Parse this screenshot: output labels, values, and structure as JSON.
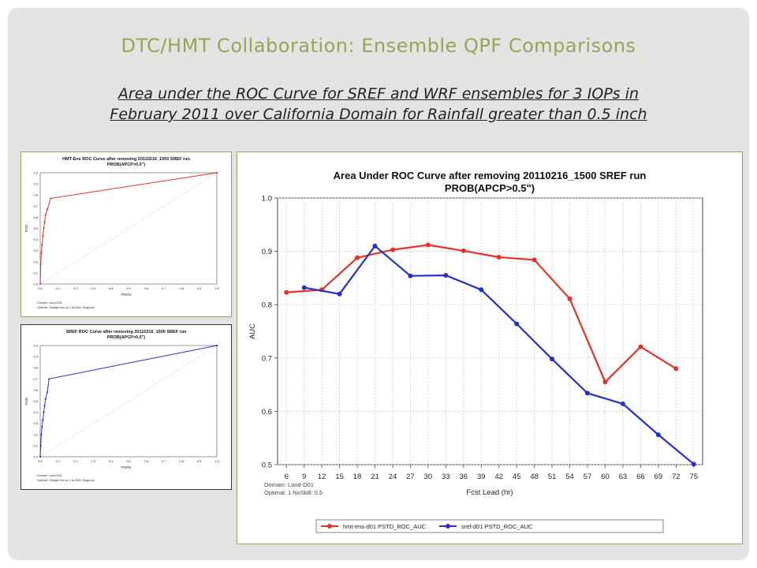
{
  "slide": {
    "title": "DTC/HMT Collaboration:  Ensemble QPF Comparisons",
    "subtitle_line1": "Area under the ROC Curve for SREF and WRF ensembles for 3 IOPs in",
    "subtitle_line2": "February 2011 over California Domain for Rainfall greater than 0.5 inch"
  },
  "chart_data": [
    {
      "type": "line",
      "title": "HMT-Ens ROC Curve after removing 20110216_1500 SREF run",
      "subtitle": "PROB(APCP>0.5\")",
      "xlabel": "POFD",
      "ylabel": "POD",
      "xlim": [
        0,
        1
      ],
      "ylim": [
        0,
        1
      ],
      "x_ticks": [
        "0.0",
        "0.1",
        "0.2",
        "0.3",
        "0.4",
        "0.5",
        "0.6",
        "0.7",
        "0.8",
        "0.9",
        "1.0"
      ],
      "y_ticks": [
        "0.0",
        "0.1",
        "0.2",
        "0.3",
        "0.4",
        "0.5",
        "0.6",
        "0.7",
        "0.8",
        "0.9",
        "1.0"
      ],
      "color": "#e8302a",
      "series": [
        {
          "x": [
            0,
            0.003,
            0.006,
            0.01,
            0.015,
            0.02,
            0.025,
            0.03,
            0.04,
            0.06,
            1.0
          ],
          "y": [
            0,
            0.18,
            0.28,
            0.35,
            0.43,
            0.5,
            0.56,
            0.62,
            0.67,
            0.77,
            1.0
          ]
        }
      ],
      "diagonal": true,
      "footnote": [
        "Domain: Land-D01",
        "Optimal: Straight line at 1   NoSkill: Diagonal"
      ]
    },
    {
      "type": "line",
      "title": "SREF ROC Curve after removing 20110216_1500 SREF run",
      "subtitle": "PROB(APCP>0.5\")",
      "xlabel": "POFD",
      "ylabel": "POD",
      "xlim": [
        0,
        1
      ],
      "ylim": [
        0,
        1
      ],
      "x_ticks": [
        "0.0",
        "0.1",
        "0.2",
        "0.3",
        "0.4",
        "0.5",
        "0.6",
        "0.7",
        "0.8",
        "0.9",
        "1.0"
      ],
      "y_ticks": [
        "0.0",
        "0.1",
        "0.2",
        "0.3",
        "0.4",
        "0.5",
        "0.6",
        "0.7",
        "0.8",
        "0.9",
        "1.0"
      ],
      "color": "#2430c8",
      "series": [
        {
          "x": [
            0,
            0.003,
            0.006,
            0.01,
            0.015,
            0.02,
            0.025,
            0.03,
            0.04,
            0.05,
            1.0
          ],
          "y": [
            0,
            0.1,
            0.2,
            0.27,
            0.33,
            0.4,
            0.46,
            0.52,
            0.58,
            0.7,
            1.0
          ]
        }
      ],
      "diagonal": true,
      "footnote": [
        "Domain: Land-D01",
        "Optimal: Straight line at 1   NoSkill: Diagonal"
      ]
    },
    {
      "type": "line",
      "title": "Area Under ROC Curve after removing 20110216_1500 SREF run",
      "subtitle": "PROB(APCP>0.5\")",
      "xlabel": "Fcst Lead (hr)",
      "ylabel": "AUC",
      "categories": [
        "6",
        "9",
        "12",
        "15",
        "18",
        "21",
        "24",
        "27",
        "30",
        "33",
        "36",
        "39",
        "42",
        "45",
        "48",
        "51",
        "54",
        "57",
        "60",
        "63",
        "66",
        "69",
        "72",
        "75"
      ],
      "ylim": [
        0.5,
        1.0
      ],
      "y_ticks": [
        "0.5",
        "0.6",
        "0.7",
        "0.8",
        "0.9",
        "1.0"
      ],
      "grid": true,
      "legend_position": "bottom",
      "series": [
        {
          "name": "hmt-ens-d01 PSTD_ROC_AUC",
          "color": "#e8302a",
          "x": [
            6,
            12,
            18,
            24,
            30,
            36,
            42,
            48,
            54,
            60,
            66,
            72
          ],
          "y": [
            0.823,
            0.828,
            0.888,
            0.903,
            0.912,
            0.901,
            0.889,
            0.884,
            0.811,
            0.655,
            0.721,
            0.68
          ]
        },
        {
          "name": "sref-d01 PSTD_ROC_AUC",
          "color": "#2430c8",
          "x": [
            9,
            15,
            21,
            27,
            33,
            39,
            45,
            51,
            57,
            63,
            69,
            75
          ],
          "y": [
            0.832,
            0.82,
            0.91,
            0.854,
            0.855,
            0.828,
            0.764,
            0.698,
            0.634,
            0.614,
            0.556,
            0.501
          ]
        }
      ],
      "footnote": [
        "Domain: Land-D01",
        "Optimal: 1    NoSkill: 0.5"
      ]
    }
  ]
}
